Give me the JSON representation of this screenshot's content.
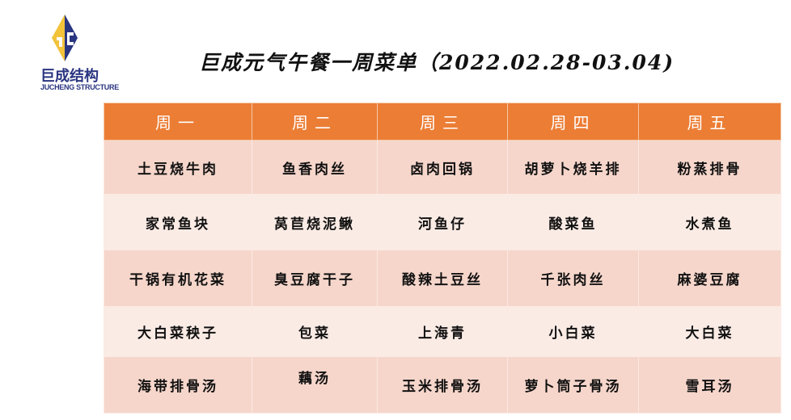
{
  "logo": {
    "name_cn": "巨成结构",
    "name_en": "JUCHENG STRUCTURE",
    "colors": {
      "gold": "#f2c23a",
      "navy": "#2a3580"
    }
  },
  "title": "巨成元气午餐一周菜单（2022.02.28-03.04)",
  "colors": {
    "header": "#ec7d35",
    "row_dark": "#f6d6cb",
    "row_light": "#fbebe5"
  },
  "menu": {
    "days": [
      "周一",
      "周二",
      "周三",
      "周四",
      "周五"
    ],
    "rows": [
      [
        "土豆烧牛肉",
        "鱼香肉丝",
        "卤肉回锅",
        "胡萝卜烧羊排",
        "粉蒸排骨"
      ],
      [
        "家常鱼块",
        "莴苣烧泥鳅",
        "河鱼仔",
        "酸菜鱼",
        "水煮鱼"
      ],
      [
        "干锅有机花菜",
        "臭豆腐干子",
        "酸辣土豆丝",
        "千张肉丝",
        "麻婆豆腐"
      ],
      [
        "大白菜秧子",
        "包菜",
        "上海青",
        "小白菜",
        "大白菜"
      ],
      [
        "海带排骨汤",
        "藕汤",
        "玉米排骨汤",
        "萝卜筒子骨汤",
        "雪耳汤"
      ]
    ]
  }
}
